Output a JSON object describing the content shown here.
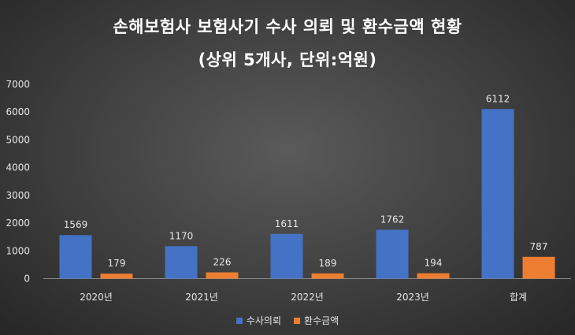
{
  "chart_data": {
    "type": "bar",
    "title": "손해보험사 보험사기 수사 의뢰 및 환수금액 현황",
    "subtitle": "(상위 5개사, 단위:억원)",
    "categories": [
      "2020년",
      "2021년",
      "2022년",
      "2023년",
      "합계"
    ],
    "series": [
      {
        "name": "수사의뢰",
        "values": [
          1569,
          1170,
          1611,
          1762,
          6112
        ],
        "color": "#4472c4"
      },
      {
        "name": "환수금액",
        "values": [
          179,
          226,
          189,
          194,
          787
        ],
        "color": "#ed7d31"
      }
    ],
    "ylim": [
      0,
      7000
    ],
    "yticks": [
      0,
      1000,
      2000,
      3000,
      4000,
      5000,
      6000,
      7000
    ],
    "grid": false,
    "legend_position": "bottom"
  }
}
